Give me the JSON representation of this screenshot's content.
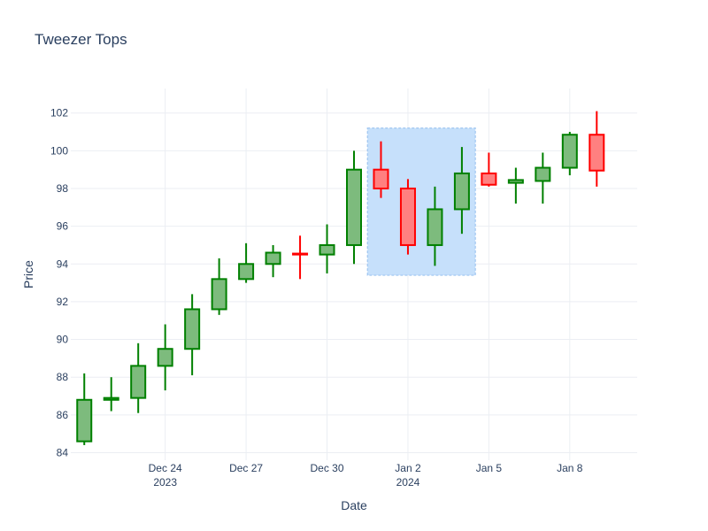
{
  "chart_data": {
    "type": "candlestick",
    "title": "Tweezer Tops",
    "xlabel": "Date",
    "ylabel": "Price",
    "ylim": [
      83.6,
      103.3
    ],
    "xlim": [
      "2023-12-20 12:00",
      "2024-01-10 12:00"
    ],
    "y_ticks": [
      "84",
      "86",
      "88",
      "90",
      "92",
      "94",
      "96",
      "98",
      "100",
      "102"
    ],
    "x_ticks": [
      {
        "date": "2023-12-24",
        "label": "Dec 24",
        "sublabel": "2023"
      },
      {
        "date": "2023-12-27",
        "label": "Dec 27",
        "sublabel": ""
      },
      {
        "date": "2023-12-30",
        "label": "Dec 30",
        "sublabel": ""
      },
      {
        "date": "2024-01-02",
        "label": "Jan 2",
        "sublabel": "2024"
      },
      {
        "date": "2024-01-05",
        "label": "Jan 5",
        "sublabel": ""
      },
      {
        "date": "2024-01-08",
        "label": "Jan 8",
        "sublabel": ""
      }
    ],
    "grid": true,
    "colors": {
      "increasing_line": "#008000",
      "increasing_fill": "#7dbb7d",
      "decreasing_line": "#ff0000",
      "decreasing_fill": "#ff8080",
      "highlight_fill": "#c6e0fb",
      "highlight_border": "#9ec5f0"
    },
    "highlight": {
      "x0": "2023-12-31 12:00",
      "x1": "2024-01-04 12:00",
      "y0": 93.4,
      "y1": 101.2
    },
    "candles": [
      {
        "date": "2023-12-21",
        "open": 84.6,
        "high": 88.2,
        "low": 84.4,
        "close": 86.8
      },
      {
        "date": "2023-12-22",
        "open": 86.8,
        "high": 88.0,
        "low": 86.2,
        "close": 86.9
      },
      {
        "date": "2023-12-23",
        "open": 86.9,
        "high": 89.8,
        "low": 86.1,
        "close": 88.6
      },
      {
        "date": "2023-12-24",
        "open": 88.6,
        "high": 90.8,
        "low": 87.3,
        "close": 89.5
      },
      {
        "date": "2023-12-25",
        "open": 89.5,
        "high": 92.4,
        "low": 88.1,
        "close": 91.6
      },
      {
        "date": "2023-12-26",
        "open": 91.6,
        "high": 94.3,
        "low": 91.3,
        "close": 93.2
      },
      {
        "date": "2023-12-27",
        "open": 93.2,
        "high": 95.1,
        "low": 93.0,
        "close": 94.0
      },
      {
        "date": "2023-12-28",
        "open": 94.0,
        "high": 95.0,
        "low": 93.3,
        "close": 94.6
      },
      {
        "date": "2023-12-29",
        "open": 94.55,
        "high": 95.5,
        "low": 93.2,
        "close": 94.5
      },
      {
        "date": "2023-12-30",
        "open": 94.5,
        "high": 96.1,
        "low": 93.5,
        "close": 95.0
      },
      {
        "date": "2023-12-31",
        "open": 95.0,
        "high": 100.0,
        "low": 94.0,
        "close": 99.0
      },
      {
        "date": "2024-01-01",
        "open": 99.0,
        "high": 100.5,
        "low": 97.5,
        "close": 98.0
      },
      {
        "date": "2024-01-02",
        "open": 98.0,
        "high": 98.5,
        "low": 94.5,
        "close": 95.0
      },
      {
        "date": "2024-01-03",
        "open": 95.0,
        "high": 98.1,
        "low": 93.9,
        "close": 96.9
      },
      {
        "date": "2024-01-04",
        "open": 96.9,
        "high": 100.2,
        "low": 95.6,
        "close": 98.8
      },
      {
        "date": "2024-01-05",
        "open": 98.8,
        "high": 99.9,
        "low": 98.1,
        "close": 98.2
      },
      {
        "date": "2024-01-06",
        "open": 98.3,
        "high": 99.1,
        "low": 97.2,
        "close": 98.45
      },
      {
        "date": "2024-01-07",
        "open": 98.4,
        "high": 99.9,
        "low": 97.2,
        "close": 99.1
      },
      {
        "date": "2024-01-08",
        "open": 99.1,
        "high": 101.0,
        "low": 98.7,
        "close": 100.85
      },
      {
        "date": "2024-01-09",
        "open": 100.85,
        "high": 102.1,
        "low": 98.1,
        "close": 98.95
      }
    ]
  }
}
